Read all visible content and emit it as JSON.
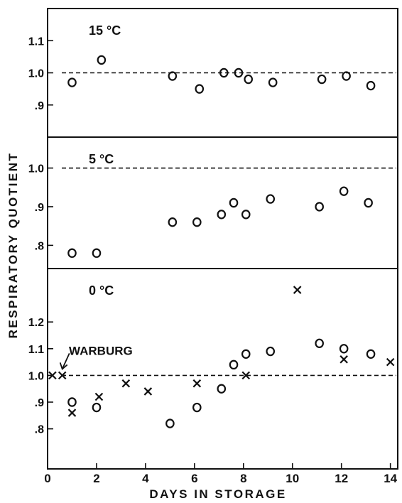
{
  "chart_data": {
    "type": "scatter",
    "ylabel": "RESPIRATORY QUOTIENT",
    "xlabel": "DAYS IN STORAGE",
    "x_ticks": [
      "0",
      "2",
      "4",
      "6",
      "8",
      "10",
      "12",
      "14"
    ],
    "xlim": [
      0,
      14.3
    ],
    "panels": [
      {
        "title": "15 °C",
        "ylim": [
          0.8,
          1.2
        ],
        "y_ticks": [
          "1.1",
          "1.0",
          ".9"
        ],
        "reference_line": 1.0,
        "series": [
          {
            "marker": "circle",
            "x": [
              1.0,
              2.2,
              5.1,
              6.2,
              7.2,
              7.8,
              8.2,
              9.2,
              11.2,
              12.2,
              13.2
            ],
            "y": [
              0.97,
              1.04,
              0.99,
              0.95,
              1.0,
              1.0,
              0.98,
              0.97,
              0.98,
              0.99,
              0.96
            ]
          }
        ]
      },
      {
        "title": "5 °C",
        "ylim": [
          0.74,
          1.08
        ],
        "y_ticks": [
          "1.0",
          ".9",
          ".8"
        ],
        "reference_line": 1.0,
        "series": [
          {
            "marker": "circle",
            "x": [
              1.0,
              2.0,
              5.1,
              6.1,
              7.1,
              7.6,
              8.1,
              9.1,
              11.1,
              12.1,
              13.1
            ],
            "y": [
              0.78,
              0.78,
              0.86,
              0.86,
              0.88,
              0.91,
              0.88,
              0.92,
              0.9,
              0.94,
              0.91
            ]
          }
        ]
      },
      {
        "title": "0 °C",
        "ylim": [
          0.65,
          1.4
        ],
        "y_ticks": [
          "1.2",
          "1.1",
          "1.0",
          ".9",
          ".8"
        ],
        "reference_line": 1.0,
        "annotation": "WARBURG",
        "series": [
          {
            "marker": "circle",
            "x": [
              1.0,
              2.0,
              5.0,
              6.1,
              7.1,
              7.6,
              8.1,
              9.1,
              11.1,
              12.1,
              13.2
            ],
            "y": [
              0.9,
              0.88,
              0.82,
              0.88,
              0.95,
              1.04,
              1.08,
              1.09,
              1.12,
              1.1,
              1.08
            ]
          },
          {
            "marker": "x",
            "x": [
              0.2,
              0.6,
              1.0,
              2.1,
              3.2,
              4.1,
              6.1,
              8.1,
              10.2,
              12.1,
              14.0
            ],
            "y": [
              1.0,
              1.0,
              0.86,
              0.92,
              0.97,
              0.94,
              0.97,
              1.0,
              1.32,
              1.06,
              1.05
            ]
          }
        ]
      }
    ]
  }
}
